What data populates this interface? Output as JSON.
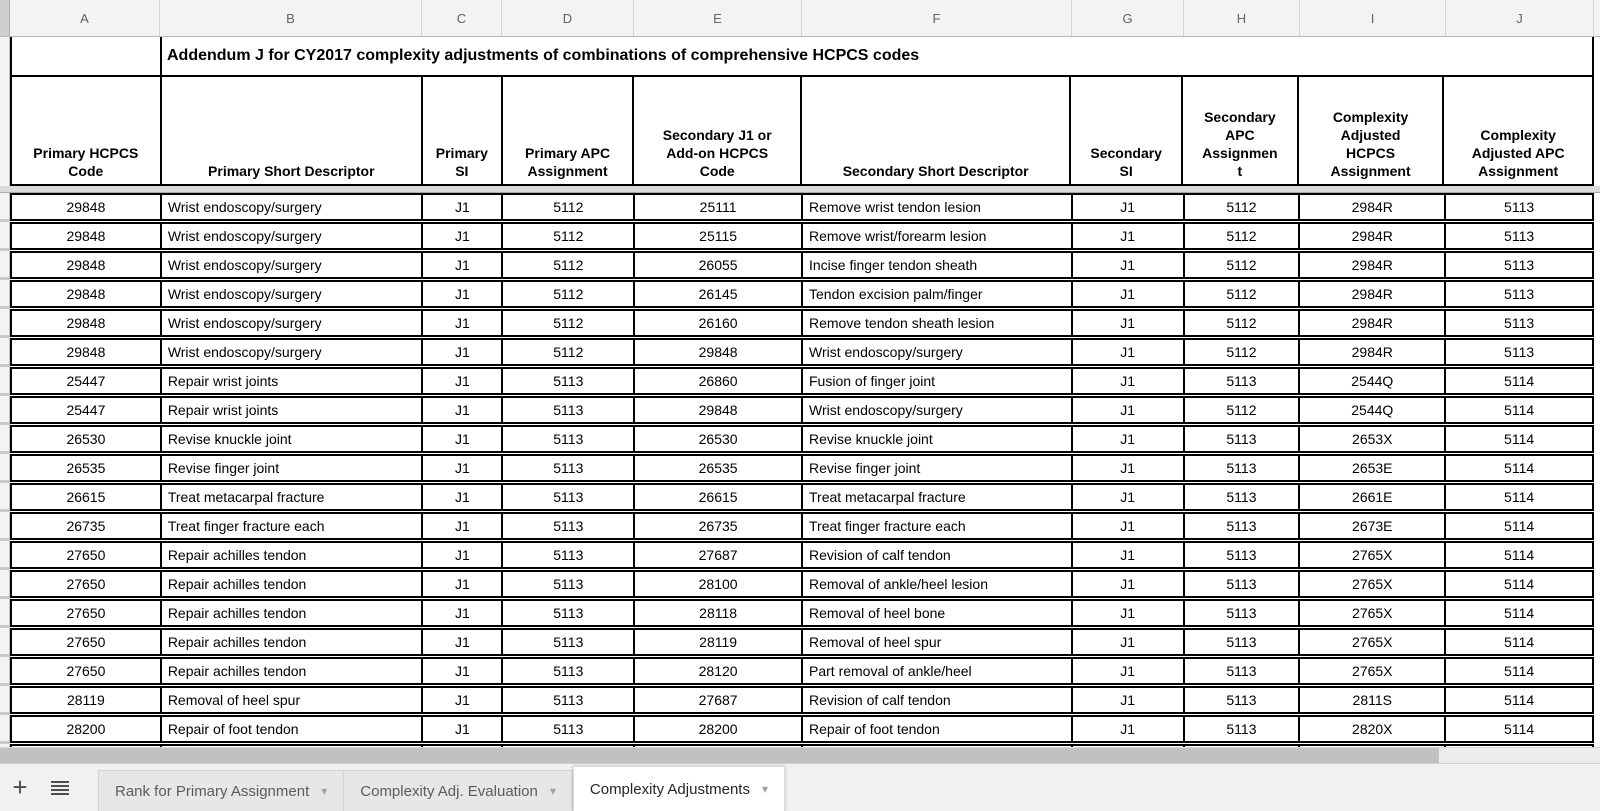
{
  "spreadsheet": {
    "column_letters": [
      "A",
      "B",
      "C",
      "D",
      "E",
      "F",
      "G",
      "H",
      "I",
      "J"
    ],
    "title": "Addendum J for CY2017 complexity adjustments of combinations of comprehensive HCPCS codes",
    "table": {
      "headers": [
        "Primary HCPCS Code",
        "Primary Short Descriptor",
        "Primary SI",
        "Primary APC Assignment",
        "Secondary J1 or Add-on HCPCS Code",
        "Secondary Short Descriptor",
        "Secondary SI",
        "Secondary APC Assignment",
        "Complexity Adjusted HCPCS Assignment",
        "Complexity Adjusted APC Assignment"
      ],
      "headers_display": [
        "Primary HCPCS\nCode",
        "Primary Short Descriptor",
        "Primary\nSI",
        "Primary APC\nAssignment",
        "Secondary J1 or\nAdd-on HCPCS\nCode",
        "Secondary Short Descriptor",
        "Secondary\nSI",
        "Secondary\nAPC\nAssignmen\nt",
        "Complexity\nAdjusted\nHCPCS\nAssignment",
        "Complexity\nAdjusted APC\nAssignment"
      ],
      "rows": [
        [
          "29848",
          "Wrist endoscopy/surgery",
          "J1",
          "5112",
          "25111",
          "Remove wrist tendon lesion",
          "J1",
          "5112",
          "2984R",
          "5113"
        ],
        [
          "29848",
          "Wrist endoscopy/surgery",
          "J1",
          "5112",
          "25115",
          "Remove wrist/forearm lesion",
          "J1",
          "5112",
          "2984R",
          "5113"
        ],
        [
          "29848",
          "Wrist endoscopy/surgery",
          "J1",
          "5112",
          "26055",
          "Incise finger tendon sheath",
          "J1",
          "5112",
          "2984R",
          "5113"
        ],
        [
          "29848",
          "Wrist endoscopy/surgery",
          "J1",
          "5112",
          "26145",
          "Tendon excision palm/finger",
          "J1",
          "5112",
          "2984R",
          "5113"
        ],
        [
          "29848",
          "Wrist endoscopy/surgery",
          "J1",
          "5112",
          "26160",
          "Remove tendon sheath lesion",
          "J1",
          "5112",
          "2984R",
          "5113"
        ],
        [
          "29848",
          "Wrist endoscopy/surgery",
          "J1",
          "5112",
          "29848",
          "Wrist endoscopy/surgery",
          "J1",
          "5112",
          "2984R",
          "5113"
        ],
        [
          "25447",
          "Repair wrist joints",
          "J1",
          "5113",
          "26860",
          "Fusion of finger joint",
          "J1",
          "5113",
          "2544Q",
          "5114"
        ],
        [
          "25447",
          "Repair wrist joints",
          "J1",
          "5113",
          "29848",
          "Wrist endoscopy/surgery",
          "J1",
          "5112",
          "2544Q",
          "5114"
        ],
        [
          "26530",
          "Revise knuckle joint",
          "J1",
          "5113",
          "26530",
          "Revise knuckle joint",
          "J1",
          "5113",
          "2653X",
          "5114"
        ],
        [
          "26535",
          "Revise finger joint",
          "J1",
          "5113",
          "26535",
          "Revise finger joint",
          "J1",
          "5113",
          "2653E",
          "5114"
        ],
        [
          "26615",
          "Treat metacarpal fracture",
          "J1",
          "5113",
          "26615",
          "Treat metacarpal fracture",
          "J1",
          "5113",
          "2661E",
          "5114"
        ],
        [
          "26735",
          "Treat finger fracture each",
          "J1",
          "5113",
          "26735",
          "Treat finger fracture each",
          "J1",
          "5113",
          "2673E",
          "5114"
        ],
        [
          "27650",
          "Repair achilles tendon",
          "J1",
          "5113",
          "27687",
          "Revision of calf tendon",
          "J1",
          "5113",
          "2765X",
          "5114"
        ],
        [
          "27650",
          "Repair achilles tendon",
          "J1",
          "5113",
          "28100",
          "Removal of ankle/heel lesion",
          "J1",
          "5113",
          "2765X",
          "5114"
        ],
        [
          "27650",
          "Repair achilles tendon",
          "J1",
          "5113",
          "28118",
          "Removal of heel bone",
          "J1",
          "5113",
          "2765X",
          "5114"
        ],
        [
          "27650",
          "Repair achilles tendon",
          "J1",
          "5113",
          "28119",
          "Removal of heel spur",
          "J1",
          "5113",
          "2765X",
          "5114"
        ],
        [
          "27650",
          "Repair achilles tendon",
          "J1",
          "5113",
          "28120",
          "Part removal of ankle/heel",
          "J1",
          "5113",
          "2765X",
          "5114"
        ],
        [
          "28119",
          "Removal of heel spur",
          "J1",
          "5113",
          "27687",
          "Revision of calf tendon",
          "J1",
          "5113",
          "2811S",
          "5114"
        ],
        [
          "28200",
          "Repair of foot tendon",
          "J1",
          "5113",
          "28200",
          "Repair of foot tendon",
          "J1",
          "5113",
          "2820X",
          "5114"
        ]
      ]
    },
    "tabs": [
      {
        "label": "Rank for Primary Assignment",
        "active": false
      },
      {
        "label": "Complexity Adj. Evaluation",
        "active": false
      },
      {
        "label": "Complexity Adjustments",
        "active": true
      }
    ],
    "icons": {
      "add_sheet_glyph": "+",
      "all_sheets": "list-icon",
      "tab_dropdown_glyph": "▾"
    },
    "colors": {
      "grid_border": "#000000",
      "strip_bg": "#f3f3f3",
      "frozen_band": "#dadada",
      "scrollbar_thumb": "#c1c1c1",
      "tabbar_bg": "#f1f1f1",
      "active_tab_bg": "#ffffff"
    }
  }
}
